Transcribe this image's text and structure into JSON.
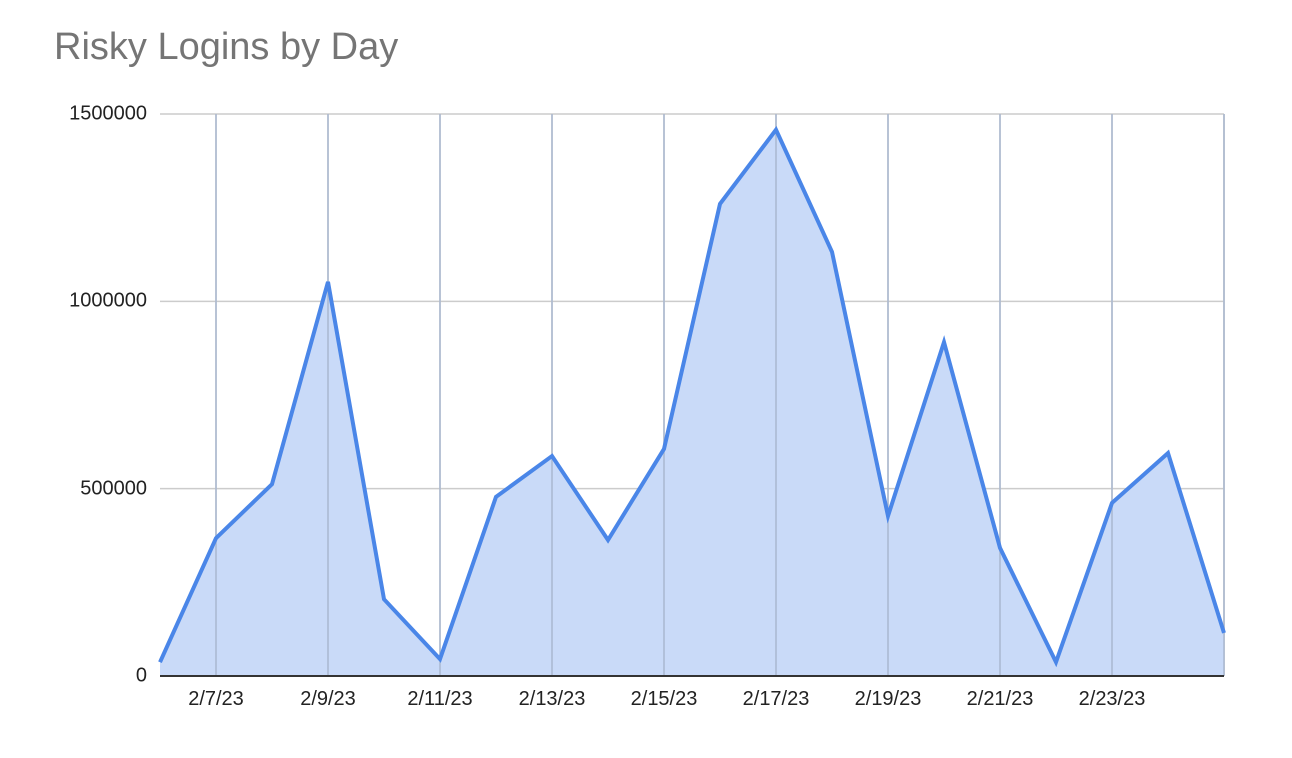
{
  "chart_data": {
    "type": "area",
    "title": "Risky Logins by Day",
    "xlabel": "",
    "ylabel": "",
    "ylim": [
      0,
      1500000
    ],
    "yticks": [
      "0",
      "500000",
      "1000000",
      "1500000"
    ],
    "xticks": [
      "2/7/23",
      "2/9/23",
      "2/11/23",
      "2/13/23",
      "2/15/23",
      "2/17/23",
      "2/19/23",
      "2/21/23",
      "2/23/23"
    ],
    "grid": true,
    "legend": "none",
    "x": [
      "2/6/23",
      "2/7/23",
      "2/8/23",
      "2/9/23",
      "2/10/23",
      "2/11/23",
      "2/12/23",
      "2/13/23",
      "2/14/23",
      "2/15/23",
      "2/16/23",
      "2/17/23",
      "2/18/23",
      "2/19/23",
      "2/20/23",
      "2/21/23",
      "2/22/23",
      "2/23/23",
      "2/24/23",
      "2/25/23"
    ],
    "series": [
      {
        "name": "Risky Logins",
        "color": "#4a86e8",
        "values": [
          37000,
          368000,
          512000,
          1052000,
          205000,
          45000,
          478000,
          587000,
          363000,
          606000,
          1260000,
          1458000,
          1132000,
          427000,
          891000,
          342000,
          37000,
          462000,
          595000,
          115000
        ]
      }
    ]
  }
}
